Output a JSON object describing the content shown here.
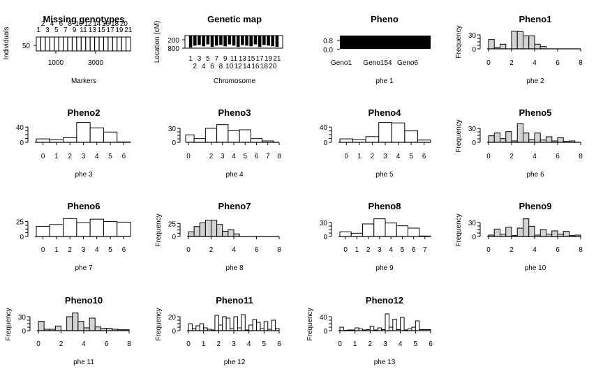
{
  "chart_data": [
    {
      "type": "heatmap",
      "title": "Missing genotypes",
      "xlabel": "Markers",
      "ylabel": "Individuals",
      "x_ticks": [
        "1000",
        "3000"
      ],
      "y_ticks": [
        "50"
      ],
      "top_labels_row1": [
        "2",
        "4",
        "6",
        "8",
        "10",
        "12",
        "14",
        "16",
        "18",
        "20"
      ],
      "top_labels_row2": [
        "1",
        "3",
        "5",
        "7",
        "9",
        "11",
        "13",
        "15",
        "17",
        "19",
        "21"
      ]
    },
    {
      "type": "bar",
      "title": "Genetic map",
      "xlabel": "Chromosome",
      "ylabel": "Location (cM)",
      "y_ticks": [
        "200",
        "800"
      ],
      "x_ticks_odd": [
        "1",
        "3",
        "5",
        "7",
        "9",
        "11",
        "13",
        "15",
        "17",
        "19",
        "21"
      ],
      "x_ticks_even": [
        "2",
        "4",
        "6",
        "8",
        "10",
        "12",
        "14",
        "16",
        "18",
        "20"
      ]
    },
    {
      "type": "bar",
      "title": "Pheno",
      "xlabel": "phe 1",
      "y_ticks": [
        "0.8",
        "0.0"
      ],
      "x_ticks": [
        "Geno1",
        "Geno154",
        "Geno6"
      ]
    },
    {
      "type": "bar",
      "title": "Pheno1",
      "xlabel": "phe 2",
      "ylabel": "Frequency",
      "fill": "#d3d3d3",
      "xlim": [
        0,
        8
      ],
      "x_ticks": [
        "0",
        "2",
        "4",
        "6",
        "8"
      ],
      "y_ticks": [
        "30",
        "0"
      ],
      "ymax": 45,
      "bins_start": 0,
      "bin_width": 0.5,
      "values": [
        20,
        3,
        10,
        0,
        38,
        37,
        28,
        28,
        10,
        5
      ]
    },
    {
      "type": "bar",
      "title": "Pheno2",
      "xlabel": "phe 3",
      "ylabel": "",
      "fill": "#ffffff",
      "xlim": [
        -0.5,
        6.5
      ],
      "x_ticks": [
        "0",
        "1",
        "2",
        "3",
        "4",
        "5",
        "6"
      ],
      "y_ticks": [
        "40",
        "0"
      ],
      "ymax": 55,
      "bins_start": -0.5,
      "bin_width": 1,
      "values": [
        9,
        7,
        12,
        52,
        38,
        27,
        1
      ]
    },
    {
      "type": "bar",
      "title": "Pheno3",
      "xlabel": "phe 4",
      "ylabel": "",
      "fill": "#ffffff",
      "xlim": [
        0,
        8
      ],
      "x_ticks": [
        "0",
        "2",
        "3",
        "4",
        "5",
        "6",
        "7",
        "8"
      ],
      "y_ticks": [
        "30",
        "0"
      ],
      "ymax": 45,
      "bins_start": -0.5,
      "bin_width": 1,
      "values": [
        16,
        8,
        30,
        38,
        25,
        27,
        8,
        3
      ]
    },
    {
      "type": "bar",
      "title": "Pheno4",
      "xlabel": "phe 5",
      "ylabel": "",
      "fill": "#ffffff",
      "xlim": [
        -0.5,
        6.5
      ],
      "x_ticks": [
        "0",
        "1",
        "2",
        "3",
        "4",
        "5",
        "6"
      ],
      "y_ticks": [
        "40",
        "0"
      ],
      "ymax": 55,
      "bins_start": -0.5,
      "bin_width": 1,
      "values": [
        9,
        7,
        15,
        52,
        51,
        30,
        6
      ]
    },
    {
      "type": "bar",
      "title": "Pheno5",
      "xlabel": "phe 6",
      "ylabel": "Frequency",
      "fill": "#d3d3d3",
      "xlim": [
        0,
        8
      ],
      "x_ticks": [
        "0",
        "2",
        "4",
        "6",
        "8"
      ],
      "y_ticks": [
        "30",
        "0"
      ],
      "ymax": 45,
      "bins_start": 0,
      "bin_width": 0.5,
      "values": [
        14,
        20,
        8,
        23,
        3,
        40,
        20,
        6,
        20,
        5,
        12,
        3,
        10,
        2,
        3
      ]
    },
    {
      "type": "bar",
      "title": "Pheno6",
      "xlabel": "phe 7",
      "ylabel": "",
      "fill": "#ffffff",
      "xlim": [
        -0.5,
        6.5
      ],
      "x_ticks": [
        "0",
        "1",
        "2",
        "3",
        "4",
        "5",
        "6"
      ],
      "y_ticks": [
        "25",
        "0"
      ],
      "ymax": 35,
      "bins_start": -0.5,
      "bin_width": 1,
      "values": [
        17,
        20,
        30,
        23,
        29,
        25,
        24
      ]
    },
    {
      "type": "bar",
      "title": "Pheno7",
      "xlabel": "phe 8",
      "ylabel": "Frequency",
      "fill": "#d3d3d3",
      "xlim": [
        0,
        8
      ],
      "x_ticks": [
        "0",
        "2",
        "4",
        "6",
        "8"
      ],
      "y_ticks": [
        "25",
        "0"
      ],
      "ymax": 40,
      "bins_start": 0,
      "bin_width": 0.5,
      "values": [
        9,
        19,
        26,
        31,
        31,
        23,
        10,
        13,
        5
      ]
    },
    {
      "type": "bar",
      "title": "Pheno8",
      "xlabel": "phe 9",
      "ylabel": "",
      "fill": "#ffffff",
      "xlim": [
        -0.5,
        7.5
      ],
      "x_ticks": [
        "0",
        "1",
        "2",
        "3",
        "4",
        "5",
        "6",
        "7"
      ],
      "y_ticks": [
        "30",
        "0"
      ],
      "ymax": 45,
      "bins_start": -0.5,
      "bin_width": 1,
      "values": [
        10,
        7,
        27,
        38,
        29,
        23,
        18,
        1
      ]
    },
    {
      "type": "bar",
      "title": "Pheno9",
      "xlabel": "phe 10",
      "ylabel": "Frequency",
      "fill": "#d3d3d3",
      "xlim": [
        0,
        8
      ],
      "x_ticks": [
        "0",
        "2",
        "4",
        "6",
        "8"
      ],
      "y_ticks": [
        "30",
        "0"
      ],
      "ymax": 45,
      "bins_start": 0,
      "bin_width": 0.5,
      "values": [
        3,
        16,
        5,
        20,
        2,
        18,
        38,
        22,
        3,
        15,
        5,
        12,
        5,
        11,
        2,
        3
      ]
    },
    {
      "type": "bar",
      "title": "Pheno10",
      "xlabel": "phe 11",
      "ylabel": "Frequency",
      "fill": "#d3d3d3",
      "xlim": [
        0,
        8
      ],
      "x_ticks": [
        "0",
        "2",
        "4",
        "6",
        "8"
      ],
      "y_ticks": [
        "30",
        "0"
      ],
      "ymax": 45,
      "bins_start": 0,
      "bin_width": 0.5,
      "values": [
        20,
        3,
        3,
        10,
        0,
        30,
        38,
        20,
        6,
        27,
        8,
        5,
        5,
        3,
        2,
        2
      ]
    },
    {
      "type": "bar",
      "title": "Pheno11",
      "xlabel": "phe 12",
      "ylabel": "Frequency",
      "fill": "#ffffff",
      "xlim": [
        0,
        6
      ],
      "x_ticks": [
        "0",
        "1",
        "2",
        "3",
        "4",
        "5",
        "6"
      ],
      "y_ticks": [
        "20",
        "0"
      ],
      "ymax": 30,
      "bins_start": 0,
      "bin_width": 0.25,
      "values": [
        10,
        3,
        7,
        10,
        4,
        2,
        1,
        22,
        8,
        20,
        18,
        3,
        20,
        4,
        23,
        1,
        8,
        16,
        12,
        3,
        13,
        2,
        15,
        3
      ]
    },
    {
      "type": "bar",
      "title": "Pheno12",
      "xlabel": "phe 13",
      "ylabel": "Frequency",
      "fill": "#ffffff",
      "xlim": [
        0,
        6
      ],
      "x_ticks": [
        "0",
        "1",
        "2",
        "3",
        "4",
        "5",
        "6"
      ],
      "y_ticks": [
        "40",
        "0"
      ],
      "ymax": 60,
      "bins_start": 0,
      "bin_width": 0.25,
      "values": [
        10,
        1,
        2,
        2,
        8,
        5,
        2,
        3,
        13,
        2,
        8,
        3,
        48,
        10,
        33,
        3,
        38,
        2,
        5,
        10,
        28,
        3,
        3,
        3
      ]
    }
  ]
}
